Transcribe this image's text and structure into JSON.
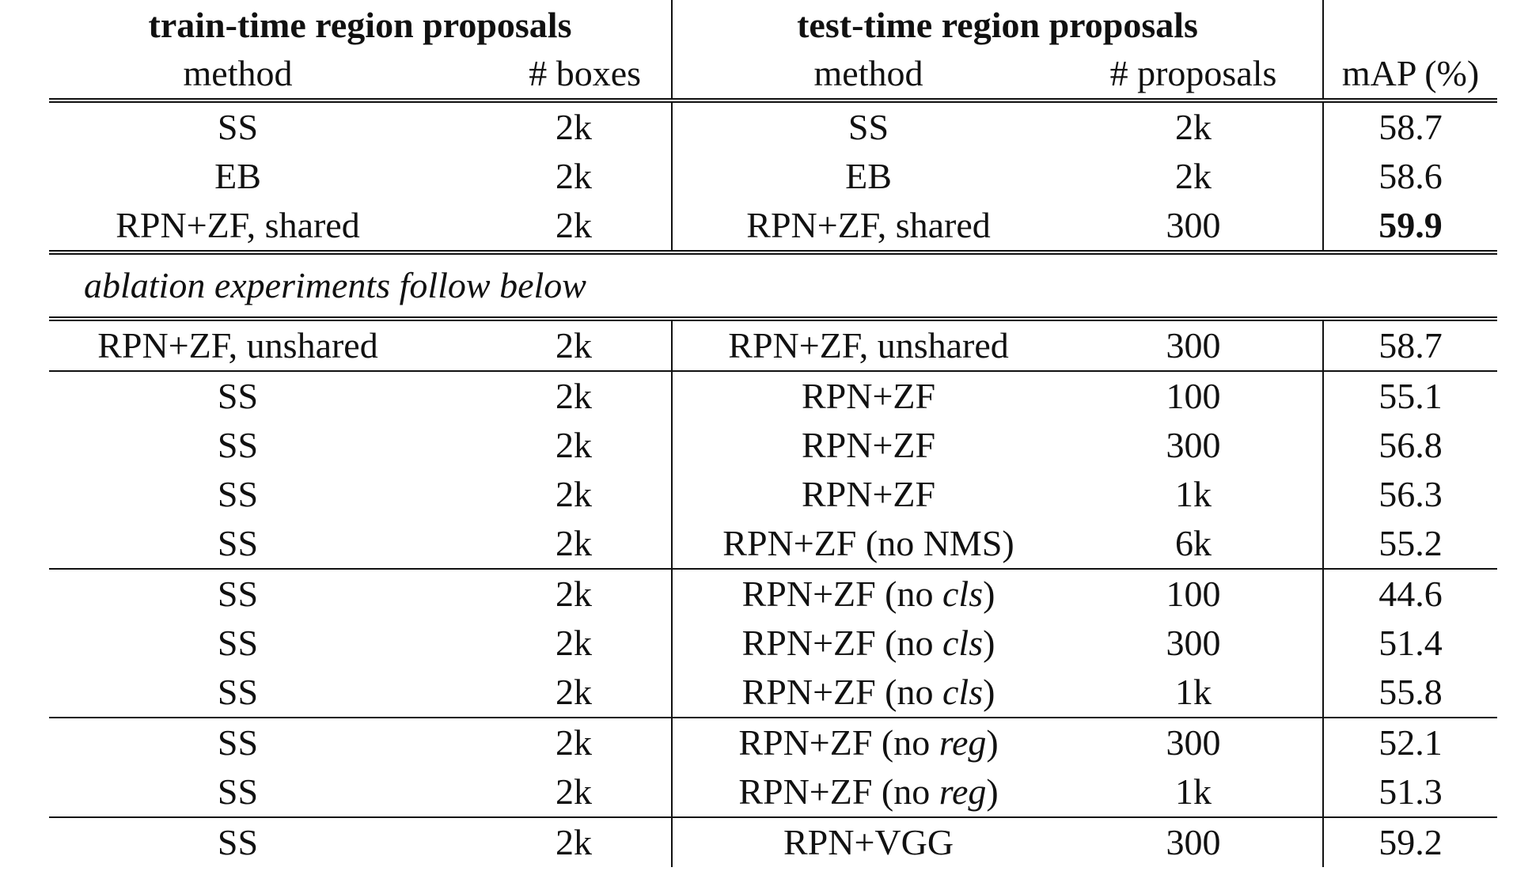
{
  "header": {
    "train_group": "train-time region proposals",
    "test_group": "test-time region proposals",
    "train_method": "method",
    "train_boxes": "# boxes",
    "test_method": "method",
    "test_proposals": "# proposals",
    "map": "mAP (%)"
  },
  "main_rows": [
    {
      "train_method": "SS",
      "boxes": "2k",
      "test_method": "SS",
      "proposals": "2k",
      "map": "58.7"
    },
    {
      "train_method": "EB",
      "boxes": "2k",
      "test_method": "EB",
      "proposals": "2k",
      "map": "58.6"
    },
    {
      "train_method": "RPN+ZF, shared",
      "boxes": "2k",
      "test_method": "RPN+ZF, shared",
      "proposals": "300",
      "map": "59.9"
    }
  ],
  "ablation_caption": "ablation experiments follow below",
  "ablation_groups": [
    [
      {
        "train_method": "RPN+ZF, unshared",
        "boxes": "2k",
        "test_method": "RPN+ZF, unshared",
        "proposals": "300",
        "map": "58.7"
      }
    ],
    [
      {
        "train_method": "SS",
        "boxes": "2k",
        "test_method": "RPN+ZF",
        "proposals": "100",
        "map": "55.1"
      },
      {
        "train_method": "SS",
        "boxes": "2k",
        "test_method": "RPN+ZF",
        "proposals": "300",
        "map": "56.8"
      },
      {
        "train_method": "SS",
        "boxes": "2k",
        "test_method": "RPN+ZF",
        "proposals": "1k",
        "map": "56.3"
      },
      {
        "train_method": "SS",
        "boxes": "2k",
        "test_method": "RPN+ZF (no NMS)",
        "proposals": "6k",
        "map": "55.2"
      }
    ],
    [
      {
        "train_method": "SS",
        "boxes": "2k",
        "test_prefix": "RPN+ZF (no ",
        "test_ital": "cls",
        "test_suffix": ")",
        "proposals": "100",
        "map": "44.6"
      },
      {
        "train_method": "SS",
        "boxes": "2k",
        "test_prefix": "RPN+ZF (no ",
        "test_ital": "cls",
        "test_suffix": ")",
        "proposals": "300",
        "map": "51.4"
      },
      {
        "train_method": "SS",
        "boxes": "2k",
        "test_prefix": "RPN+ZF (no ",
        "test_ital": "cls",
        "test_suffix": ")",
        "proposals": "1k",
        "map": "55.8"
      }
    ],
    [
      {
        "train_method": "SS",
        "boxes": "2k",
        "test_prefix": "RPN+ZF (no ",
        "test_ital": "reg",
        "test_suffix": ")",
        "proposals": "300",
        "map": "52.1"
      },
      {
        "train_method": "SS",
        "boxes": "2k",
        "test_prefix": "RPN+ZF (no ",
        "test_ital": "reg",
        "test_suffix": ")",
        "proposals": "1k",
        "map": "51.3"
      }
    ],
    [
      {
        "train_method": "SS",
        "boxes": "2k",
        "test_method": "RPN+VGG",
        "proposals": "300",
        "map": "59.2"
      }
    ]
  ]
}
